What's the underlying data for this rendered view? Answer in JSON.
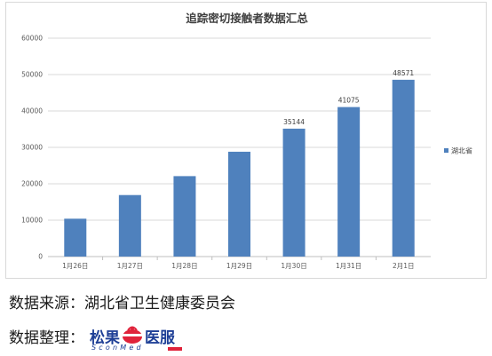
{
  "chart_data": {
    "type": "bar",
    "title": "追踪密切接触者数据汇总",
    "categories": [
      "1月26日",
      "1月27日",
      "1月28日",
      "1月29日",
      "1月30日",
      "1月31日",
      "2月1日"
    ],
    "series": [
      {
        "name": "湖北省",
        "values": [
          10400,
          16900,
          22100,
          28800,
          35144,
          41075,
          48571
        ],
        "color": "#4f81bd"
      }
    ],
    "data_labels": [
      "",
      "",
      "",
      "",
      "35144",
      "41075",
      "48571"
    ],
    "ylim": [
      0,
      60000
    ],
    "yticks": [
      0,
      10000,
      20000,
      30000,
      40000,
      50000,
      60000
    ],
    "grid": true,
    "legend": "right"
  },
  "footer": {
    "source": "数据来源：湖北省卫生健康委员会",
    "organizer_prefix": "数据整理：",
    "logo_cn_left": "松果",
    "logo_cn_right": "医服",
    "logo_en": "SconMed",
    "logo_colors": {
      "blue": "#1e3f96",
      "red": "#e0223a"
    }
  }
}
